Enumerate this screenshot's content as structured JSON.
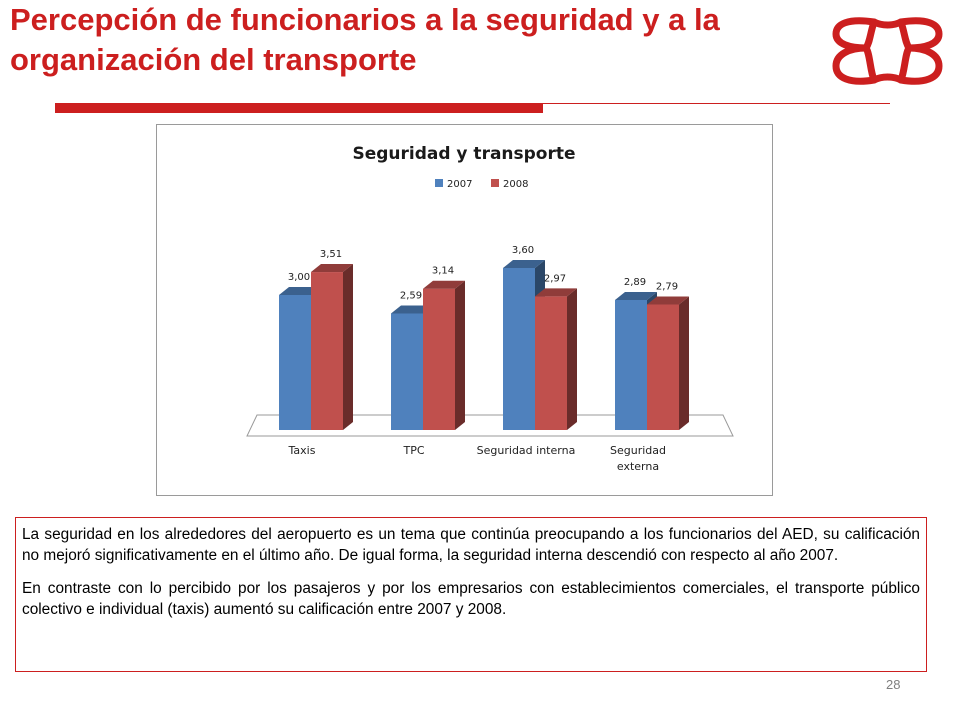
{
  "slide": {
    "title": "Percepción de funcionarios a la seguridad y a la organización del transporte",
    "page_number": "28",
    "colors": {
      "accent": "#cc1f1f"
    }
  },
  "logo": {
    "icon": "red-interlocking-loops-logo-icon"
  },
  "chart_data": {
    "type": "bar",
    "title": "Seguridad y transporte",
    "categories": [
      "Taxis",
      "TPC",
      "Seguridad interna",
      "Seguridad externa"
    ],
    "series": [
      {
        "name": "2007",
        "values": [
          3.0,
          2.59,
          3.6,
          2.89
        ],
        "labels": [
          "3,00",
          "2,59",
          "3,60",
          "2,89"
        ],
        "color": "#4f81bd"
      },
      {
        "name": "2008",
        "values": [
          3.51,
          3.14,
          2.97,
          2.79
        ],
        "labels": [
          "3,51",
          "3,14",
          "2,97",
          "2,79"
        ],
        "color": "#c0504d"
      }
    ],
    "legend_position": "top-center",
    "ylim": [
      0,
      4
    ],
    "grid": false,
    "xlabel": "",
    "ylabel": ""
  },
  "commentary": {
    "paragraph_1": "La seguridad en los alrededores del aeropuerto es un tema que continúa preocupando a los funcionarios del AED, su calificación no mejoró significativamente en el último año. De igual forma, la seguridad interna descendió con respecto al año 2007.",
    "paragraph_2": "En contraste con lo percibido por los pasajeros y por los empresarios con establecimientos comerciales, el transporte público colectivo e individual (taxis) aumentó su calificación entre 2007 y 2008."
  }
}
